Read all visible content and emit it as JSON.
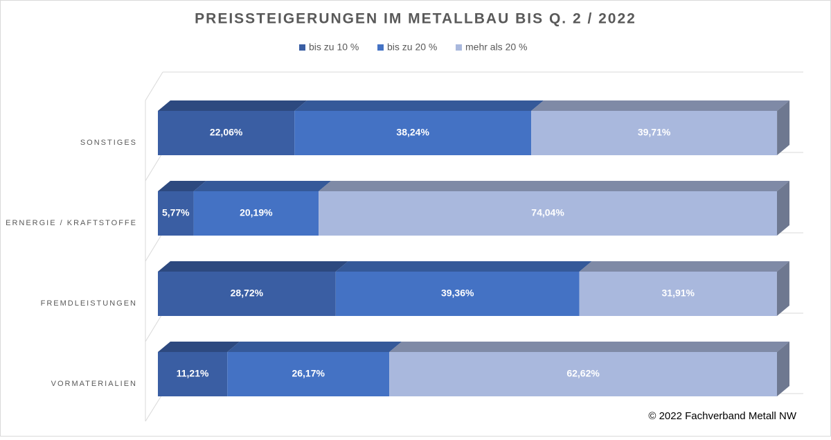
{
  "chart_data": {
    "type": "bar3d_stacked_horizontal",
    "title": "PREISSTEIGERUNGEN IM METALLBAU BIS Q. 2 / 2022",
    "categories": [
      "SONSTIGES",
      "ERNERGIE / KRAFTSTOFFE",
      "FREMDLEISTUNGEN",
      "VORMATERIALIEN"
    ],
    "series": [
      {
        "name": "bis zu 10 %",
        "color": "#3a5ea3",
        "values": [
          22.06,
          5.77,
          28.72,
          11.21
        ],
        "value_labels": [
          "22,06%",
          "5,77%",
          "28,72%",
          "11,21%"
        ]
      },
      {
        "name": "bis zu 20 %",
        "color": "#4472c4",
        "values": [
          38.24,
          20.19,
          39.36,
          26.17
        ],
        "value_labels": [
          "38,24%",
          "20,19%",
          "39,36%",
          "26,17%"
        ]
      },
      {
        "name": "mehr als 20 %",
        "color": "#a9b8dd",
        "values": [
          39.71,
          74.04,
          31.91,
          62.62
        ],
        "value_labels": [
          "39,71%",
          "74,04%",
          "31,91%",
          "62,62%"
        ]
      }
    ],
    "xlim": [
      0,
      100
    ],
    "legend": "top",
    "footnote": "© 2022 Fachverband Metall NW"
  }
}
